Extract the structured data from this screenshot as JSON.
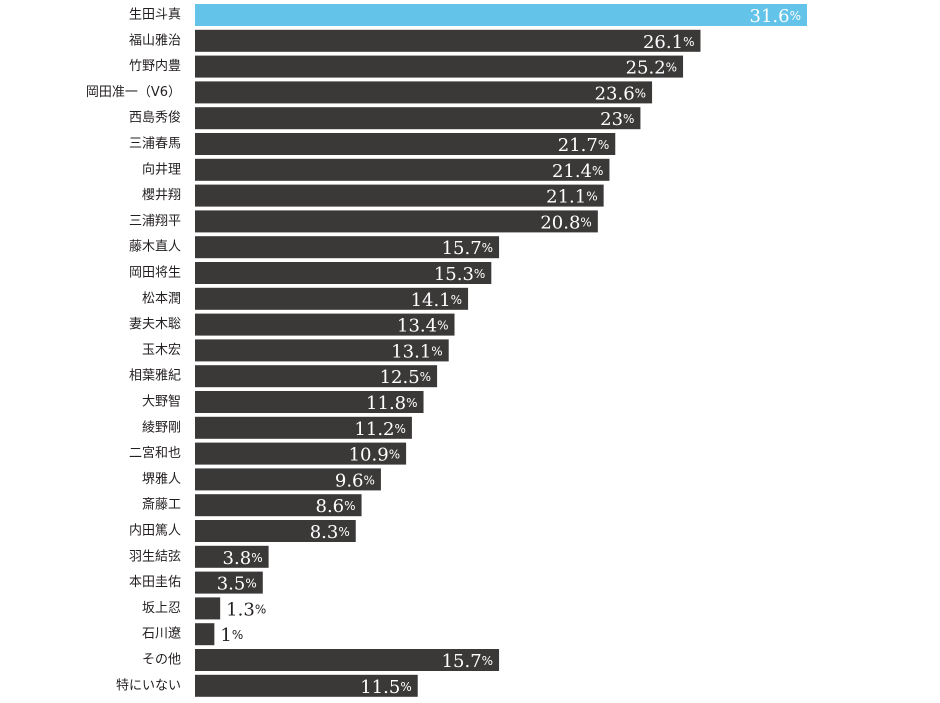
{
  "colors": {
    "bar_default": "#3b3838",
    "bar_highlight": "#63c3e8",
    "label_on_bar": "#ffffff",
    "label_outside": "#231f20",
    "category_text": "#231f20"
  },
  "chart_data": {
    "type": "bar",
    "orientation": "horizontal",
    "title": "",
    "xlabel": "",
    "ylabel": "",
    "unit": "%",
    "xlim": [
      0,
      31.6
    ],
    "grid": false,
    "highlight_index": 0,
    "categories": [
      "生田斗真",
      "福山雅治",
      "竹野内豊",
      "岡田准一（V6）",
      "西島秀俊",
      "三浦春馬",
      "向井理",
      "櫻井翔",
      "三浦翔平",
      "藤木直人",
      "岡田将生",
      "松本潤",
      "妻夫木聡",
      "玉木宏",
      "相葉雅紀",
      "大野智",
      "綾野剛",
      "二宮和也",
      "堺雅人",
      "斎藤工",
      "内田篤人",
      "羽生結弦",
      "本田圭佑",
      "坂上忍",
      "石川遼",
      "その他",
      "特にいない"
    ],
    "values": [
      31.6,
      26.1,
      25.2,
      23.6,
      23,
      21.7,
      21.4,
      21.1,
      20.8,
      15.7,
      15.3,
      14.1,
      13.4,
      13.1,
      12.5,
      11.8,
      11.2,
      10.9,
      9.6,
      8.6,
      8.3,
      3.8,
      3.5,
      1.3,
      1,
      15.7,
      11.5
    ],
    "value_labels": [
      "31.6",
      "26.1",
      "25.2",
      "23.6",
      "23",
      "21.7",
      "21.4",
      "21.1",
      "20.8",
      "15.7",
      "15.3",
      "14.1",
      "13.4",
      "13.1",
      "12.5",
      "11.8",
      "11.2",
      "10.9",
      "9.6",
      "8.6",
      "8.3",
      "3.8",
      "3.5",
      "1.3",
      "1",
      "15.7",
      "11.5"
    ]
  }
}
